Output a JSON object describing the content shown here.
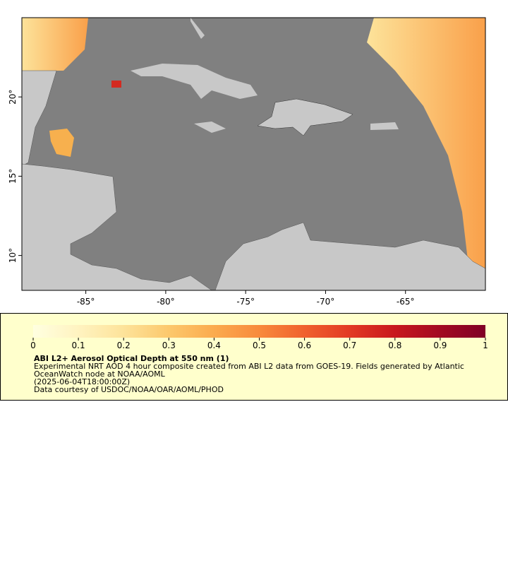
{
  "chart_data": {
    "type": "map",
    "xlim": [
      -89,
      -60
    ],
    "ylim": [
      7.8,
      25
    ],
    "xticks": [
      {
        "value": -85,
        "label": "-85°"
      },
      {
        "value": -80,
        "label": "-80°"
      },
      {
        "value": -75,
        "label": "-75°"
      },
      {
        "value": -70,
        "label": "-70°"
      },
      {
        "value": -65,
        "label": "-65°"
      }
    ],
    "yticks": [
      {
        "value": 10,
        "label": "10°"
      },
      {
        "value": 15,
        "label": "15°"
      },
      {
        "value": 20,
        "label": "20°"
      }
    ],
    "colorbar": {
      "lim": [
        0,
        1
      ],
      "ticks": [
        0,
        0.1,
        0.2,
        0.3,
        0.4,
        0.5,
        0.6,
        0.7,
        0.8,
        0.9,
        1
      ],
      "colors": [
        "#ffffe0",
        "#fff3c0",
        "#fde39a",
        "#fcc86c",
        "#fbab4e",
        "#f88a3c",
        "#f0612e",
        "#e23a24",
        "#c8181e",
        "#a20a22",
        "#800026"
      ]
    },
    "legend": {
      "title": "ABI L2+ Aerosol Optical Depth at 550 nm (1)",
      "lines": [
        "Experimental NRT AOD 4 hour composite created from ABI L2 data from GOES-19. Fields generated by Atlantic",
        "OceanWatch node at NOAA/AOML",
        "(2025-06-04T18:00:00Z)",
        "Data courtesy of USDOC/NOAA/OAR/AOML/PHOD"
      ]
    }
  }
}
